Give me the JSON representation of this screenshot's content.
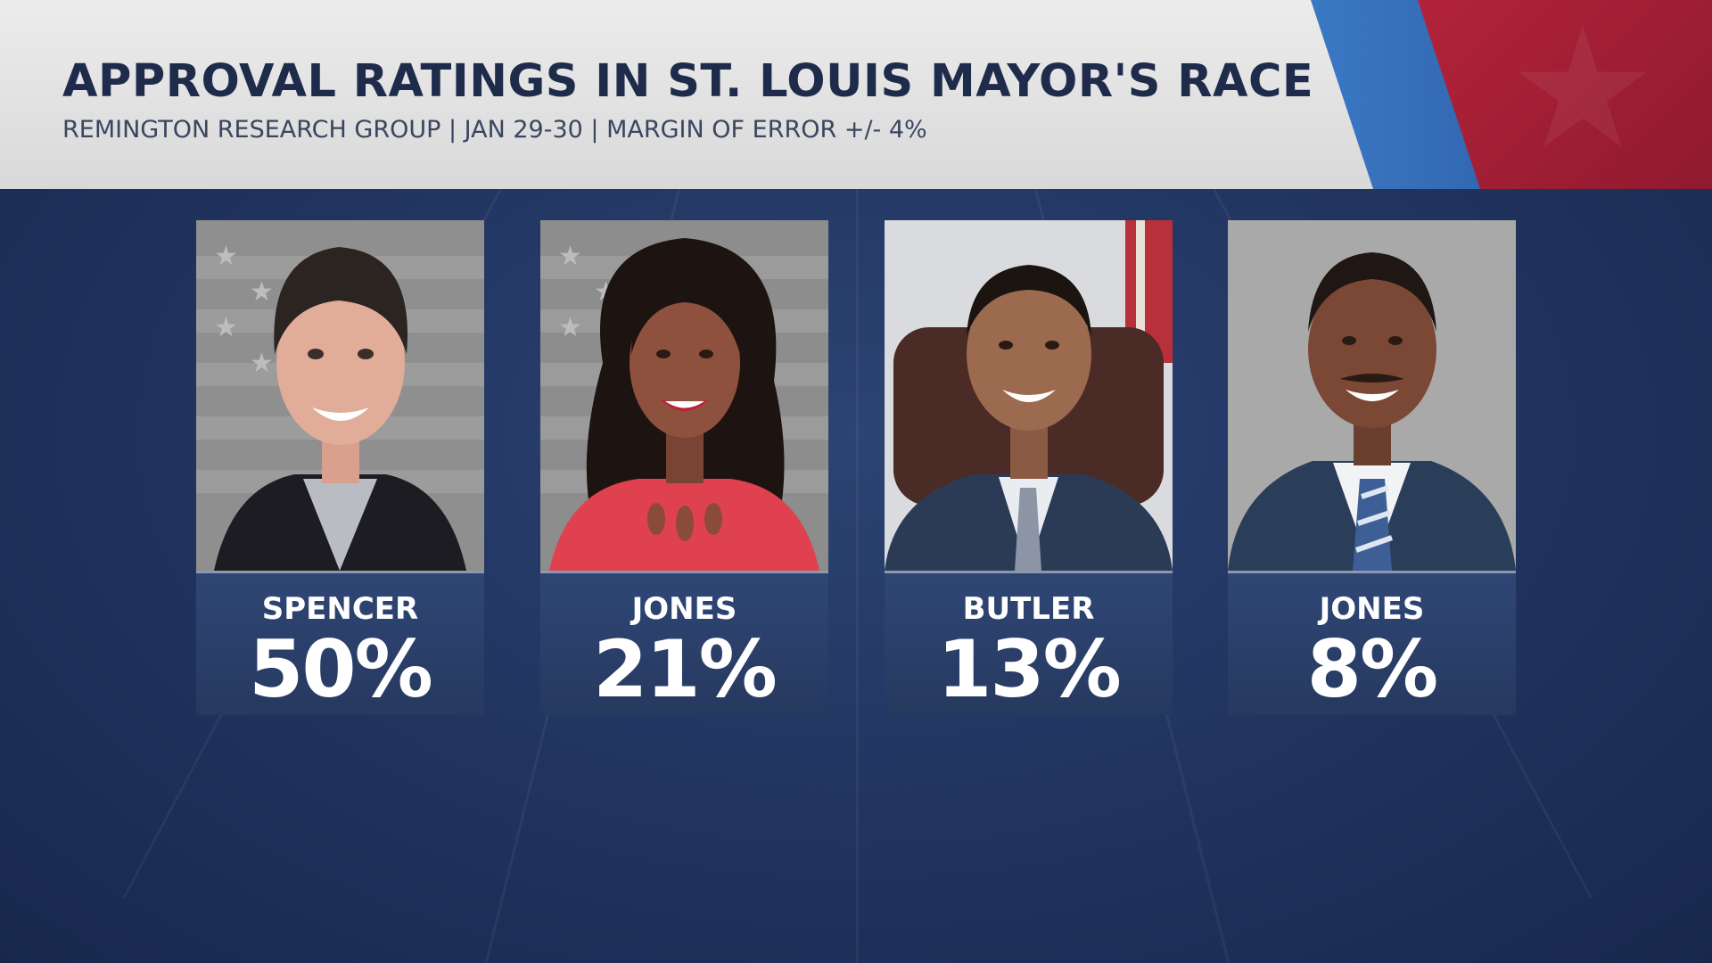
{
  "header": {
    "title": "APPROVAL RATINGS IN ST. LOUIS MAYOR'S RACE",
    "subtitle": "REMINGTON RESEARCH GROUP | JAN 29-30 | MARGIN OF ERROR +/- 4%"
  },
  "candidates": [
    {
      "name": "SPENCER",
      "percent": "50%",
      "value": 50
    },
    {
      "name": "JONES",
      "percent": "21%",
      "value": 21
    },
    {
      "name": "BUTLER",
      "percent": "13%",
      "value": 13
    },
    {
      "name": "JONES",
      "percent": "8%",
      "value": 8
    }
  ],
  "colors": {
    "background": "#223662",
    "header_band": "#e3e3e3",
    "title_text": "#1e2b4a",
    "accent_blue": "#3b78c4",
    "accent_red": "#b3233a",
    "card_label": "#2f4675"
  }
}
